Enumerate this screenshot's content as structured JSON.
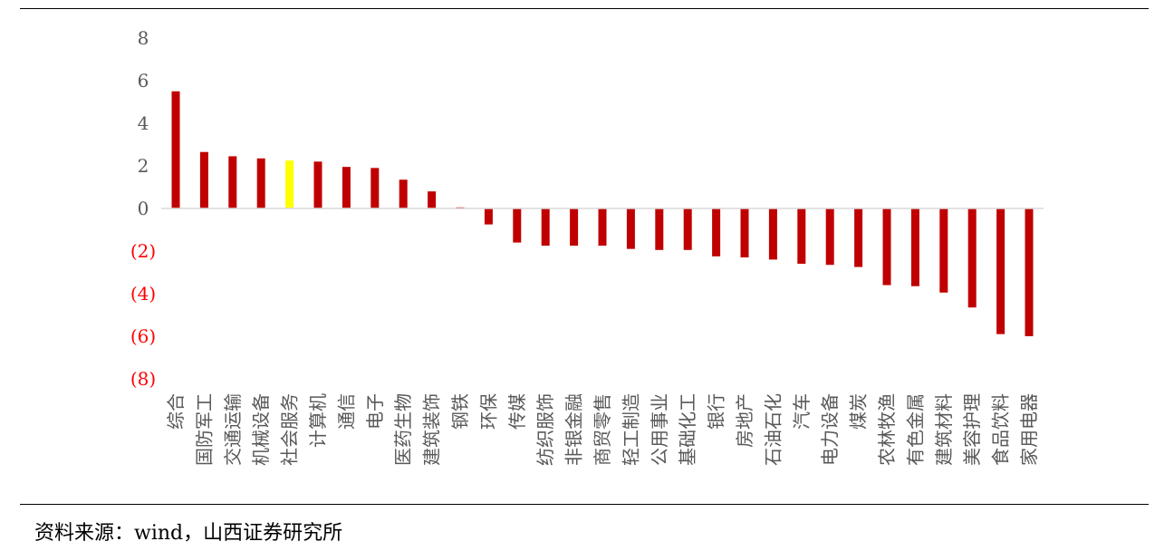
{
  "chart_data": {
    "type": "bar",
    "categories": [
      "综合",
      "国防军工",
      "交通运输",
      "机械设备",
      "社会服务",
      "计算机",
      "通信",
      "电子",
      "医药生物",
      "建筑装饰",
      "钢铁",
      "环保",
      "传媒",
      "纺织服饰",
      "非银金融",
      "商贸零售",
      "轻工制造",
      "公用事业",
      "基础化工",
      "银行",
      "房地产",
      "石油石化",
      "汽车",
      "电力设备",
      "煤炭",
      "农林牧渔",
      "有色金属",
      "建筑材料",
      "美容护理",
      "食品饮料",
      "家用电器"
    ],
    "values": [
      5.5,
      2.65,
      2.45,
      2.35,
      2.25,
      2.2,
      1.95,
      1.9,
      1.35,
      0.8,
      0.05,
      -0.75,
      -1.6,
      -1.75,
      -1.75,
      -1.75,
      -1.9,
      -1.95,
      -1.95,
      -2.25,
      -2.3,
      -2.4,
      -2.6,
      -2.65,
      -2.75,
      -3.6,
      -3.65,
      -3.95,
      -4.65,
      -5.9,
      -6.0
    ],
    "highlight_index": 4,
    "colors": {
      "bar": "#c00000",
      "highlight": "#ffff00",
      "negative_tick": "#ff0000",
      "positive_tick": "#595959"
    },
    "ylim": [
      -8,
      8
    ],
    "yticks": [
      {
        "value": 8,
        "label": "8"
      },
      {
        "value": 6,
        "label": "6"
      },
      {
        "value": 4,
        "label": "4"
      },
      {
        "value": 2,
        "label": "2"
      },
      {
        "value": 0,
        "label": "0"
      },
      {
        "value": -2,
        "label": "(2)"
      },
      {
        "value": -4,
        "label": "(4)"
      },
      {
        "value": -6,
        "label": "(6)"
      },
      {
        "value": -8,
        "label": "(8)"
      }
    ],
    "title": "",
    "xlabel": "",
    "ylabel": "",
    "grid": false,
    "legend": false
  },
  "source_text": "资料来源：wind，山西证券研究所"
}
